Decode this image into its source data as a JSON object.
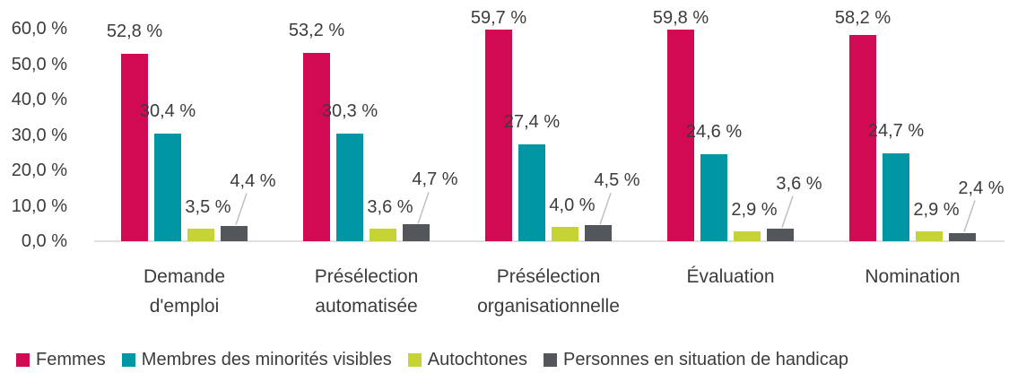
{
  "chart_data": {
    "type": "bar",
    "title": "",
    "xlabel": "",
    "ylabel": "",
    "ylim": [
      0,
      60
    ],
    "grid": false,
    "legend_position": "bottom",
    "background_color": "#FFFFFF",
    "text_color": "#3C3C3C",
    "axis_line_color": "#E0E0E0",
    "leader_line_color": "#BFBFBF",
    "y_ticks": [
      {
        "value": 0,
        "label": "0,0 %"
      },
      {
        "value": 10,
        "label": "10,0 %"
      },
      {
        "value": 20,
        "label": "20,0 %"
      },
      {
        "value": 30,
        "label": "30,0 %"
      },
      {
        "value": 40,
        "label": "40,0 %"
      },
      {
        "value": 50,
        "label": "50,0 %"
      },
      {
        "value": 60,
        "label": "60,0 %"
      }
    ],
    "categories": [
      "Demande\nd'emploi",
      "Présélection\nautomatisée",
      "Présélection\norganisationnelle",
      "Évaluation",
      "Nomination"
    ],
    "series": [
      {
        "key": "femmes",
        "name": "Femmes",
        "color": "#D20A53",
        "values": [
          52.8,
          53.2,
          59.7,
          59.8,
          58.2
        ],
        "labels": [
          "52,8 %",
          "53,2 %",
          "59,7 %",
          "59,8 %",
          "58,2 %"
        ]
      },
      {
        "key": "minorites-visibles",
        "name": "Membres des minorités visibles",
        "color": "#0096A3",
        "values": [
          30.4,
          30.3,
          27.4,
          24.6,
          24.7
        ],
        "labels": [
          "30,4 %",
          "30,3 %",
          "27,4 %",
          "24,6 %",
          "24,7 %"
        ]
      },
      {
        "key": "autochtones",
        "name": "Autochtones",
        "color": "#C5D334",
        "values": [
          3.5,
          3.6,
          4.0,
          2.9,
          2.9
        ],
        "labels": [
          "3,5 %",
          "3,6 %",
          "4,0 %",
          "2,9 %",
          "2,9 %"
        ]
      },
      {
        "key": "handicap",
        "name": "Personnes en situation de handicap",
        "color": "#53565A",
        "values": [
          4.4,
          4.7,
          4.5,
          3.6,
          2.4
        ],
        "labels": [
          "4,4 %",
          "4,7 %",
          "4,5 %",
          "3,6 %",
          "2,4 %"
        ]
      }
    ]
  }
}
